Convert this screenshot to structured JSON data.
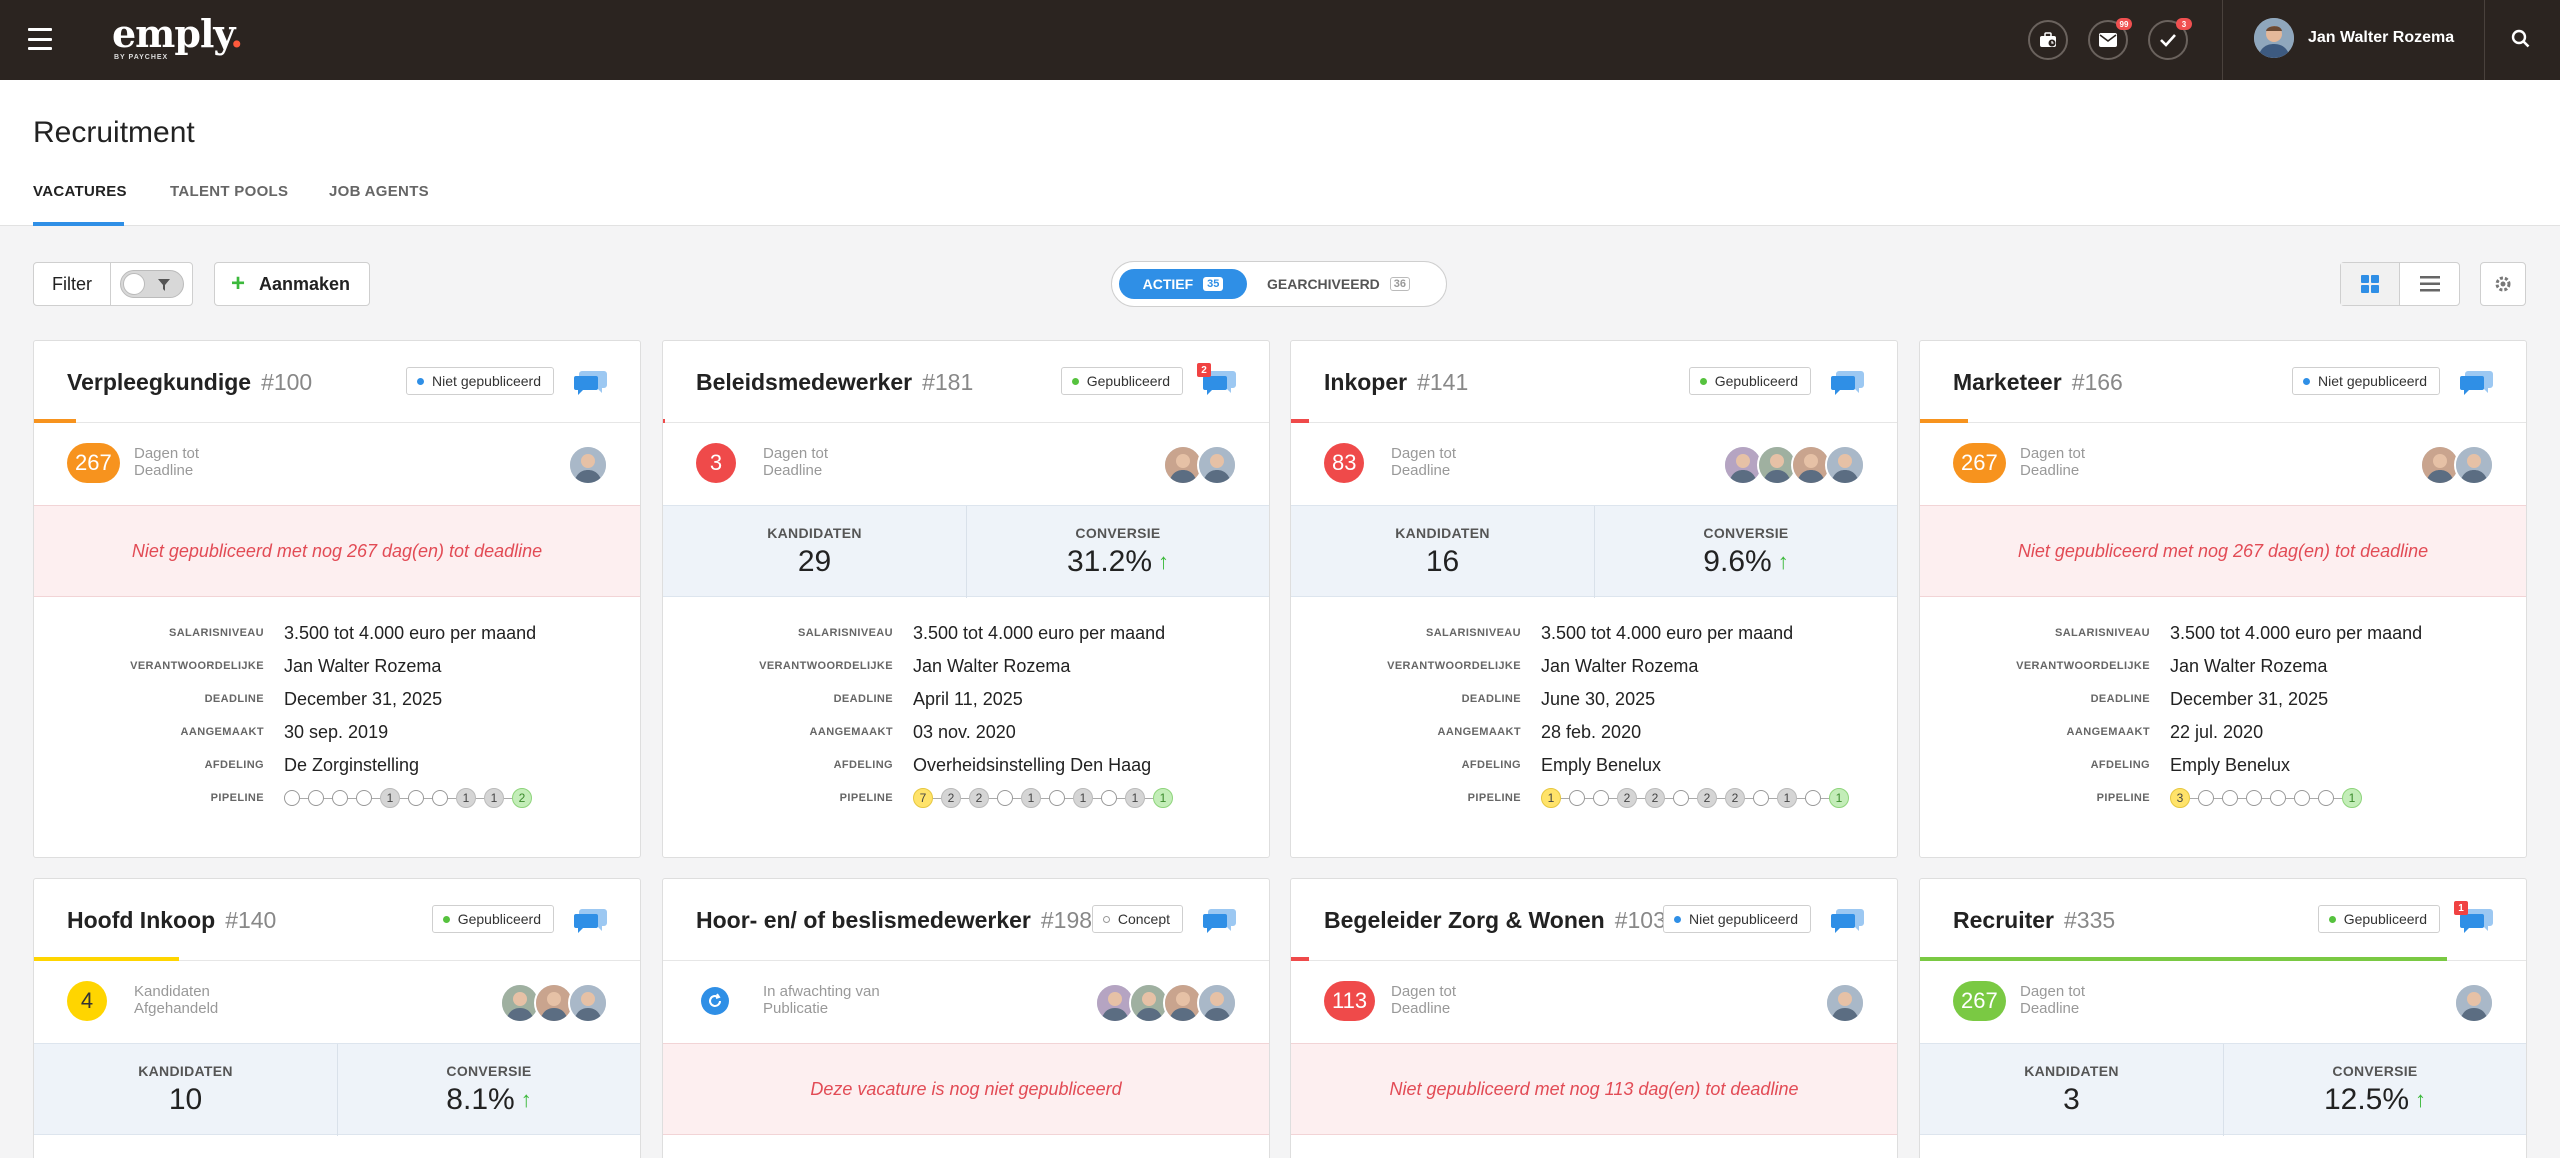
{
  "header": {
    "app_name": "emply",
    "app_dot": ".",
    "app_sub": "BY PAYCHEX",
    "icons": [
      {
        "name": "briefcase-icon",
        "badge": ""
      },
      {
        "name": "mail-icon",
        "badge": "99"
      },
      {
        "name": "checkmark-icon",
        "badge": "3"
      }
    ],
    "user_name": "Jan Walter Rozema"
  },
  "page": {
    "title": "Recruitment",
    "tabs": [
      "VACATURES",
      "TALENT POOLS",
      "JOB AGENTS"
    ],
    "active_tab": 0
  },
  "toolbar": {
    "filter_label": "Filter",
    "create_label": "Aanmaken",
    "active_label": "ACTIEF",
    "active_count": "35",
    "archived_label": "GEARCHIVEERD",
    "archived_count": "36"
  },
  "labels": {
    "salary": "SALARISNIVEAU",
    "owner": "VERANTWOORDELIJKE",
    "deadline": "DEADLINE",
    "created": "AANGEMAAKT",
    "dept": "AFDELING",
    "pipeline": "PIPELINE",
    "candidates": "KANDIDATEN",
    "conversion": "CONVERSIE"
  },
  "colors": {
    "accent": "#2f8fe6",
    "orange": "#f7931e",
    "red": "#ef4a4a",
    "yellow": "#ffd500",
    "green": "#7ac943"
  },
  "cards": [
    {
      "title": "Verpleegkundige",
      "number": "#100",
      "status": "Niet gepubliceerd",
      "status_dot": "#2f8fe6",
      "chat_badge": "",
      "accent_color": "#f7931e",
      "accent_width_frac": 0.07,
      "circle_value": "267",
      "circle_color": "#f7931e",
      "status_line1": "Dagen tot",
      "status_line2": "Deadline",
      "avatar_count": 1,
      "mode": "banner",
      "banner": "Niet gepubliceerd met nog 267 dag(en) tot deadline",
      "salary": "3.500 tot 4.000 euro per maand",
      "owner": "Jan Walter Rozema",
      "deadline": "December 31, 2025",
      "created": "30 sep. 2019",
      "dept": "De Zorginstelling",
      "pipeline": [
        "",
        "",
        "",
        "",
        "1",
        "",
        "",
        "1",
        "1",
        "2"
      ]
    },
    {
      "title": "Beleidsmedewerker",
      "number": "#181",
      "status": "Gepubliceerd",
      "status_dot": "#56c23e",
      "chat_badge": "2",
      "accent_color": "#ef4a4a",
      "accent_width_frac": 0.003,
      "circle_value": "3",
      "circle_color": "#ef4a4a",
      "status_line1": "Dagen tot",
      "status_line2": "Deadline",
      "avatar_count": 2,
      "mode": "stats",
      "candidates": "29",
      "conversion": "31.2%",
      "salary": "3.500 tot 4.000 euro per maand",
      "owner": "Jan Walter Rozema",
      "deadline": "April 11, 2025",
      "created": "03 nov. 2020",
      "dept": "Overheidsinstelling Den Haag",
      "pipeline": [
        "7",
        "2",
        "2",
        "",
        "1",
        "",
        "1",
        "",
        "1",
        "1"
      ]
    },
    {
      "title": "Inkoper",
      "number": "#141",
      "status": "Gepubliceerd",
      "status_dot": "#56c23e",
      "chat_badge": "",
      "accent_color": "#ef4a4a",
      "accent_width_frac": 0.03,
      "circle_value": "83",
      "circle_color": "#ef4a4a",
      "status_line1": "Dagen tot",
      "status_line2": "Deadline",
      "avatar_count": 4,
      "mode": "stats",
      "candidates": "16",
      "conversion": "9.6%",
      "salary": "3.500 tot 4.000 euro per maand",
      "owner": "Jan Walter Rozema",
      "deadline": "June 30, 2025",
      "created": "28 feb. 2020",
      "dept": "Emply Benelux",
      "pipeline": [
        "1",
        "",
        "",
        "2",
        "2",
        "",
        "2",
        "2",
        "",
        "1",
        "",
        "1"
      ]
    },
    {
      "title": "Marketeer",
      "number": "#166",
      "status": "Niet gepubliceerd",
      "status_dot": "#2f8fe6",
      "chat_badge": "",
      "accent_color": "#f7931e",
      "accent_width_frac": 0.08,
      "circle_value": "267",
      "circle_color": "#f7931e",
      "status_line1": "Dagen tot",
      "status_line2": "Deadline",
      "avatar_count": 2,
      "mode": "banner",
      "banner": "Niet gepubliceerd met nog 267 dag(en) tot deadline",
      "salary": "3.500 tot 4.000 euro per maand",
      "owner": "Jan Walter Rozema",
      "deadline": "December 31, 2025",
      "created": "22 jul. 2020",
      "dept": "Emply Benelux",
      "pipeline": [
        "3",
        "",
        "",
        "",
        "",
        "",
        "",
        "1"
      ]
    },
    {
      "title": "Hoofd Inkoop",
      "number": "#140",
      "status": "Gepubliceerd",
      "status_dot": "#56c23e",
      "chat_badge": "",
      "accent_color": "#ffd500",
      "accent_width_frac": 0.24,
      "circle_value": "4",
      "circle_color": "#ffd500",
      "status_line1": "Kandidaten",
      "status_line2": "Afgehandeld",
      "avatar_count": 3,
      "mode": "stats",
      "candidates": "10",
      "conversion": "8.1%"
    },
    {
      "title": "Hoor- en/ of beslismedewerker",
      "number": "#198",
      "status": "Concept",
      "status_dot": "#ffffff",
      "chat_badge": "",
      "accent_color": "#ffffff",
      "accent_width_frac": 0,
      "circle_value": "⟳",
      "circle_color": "#2f8fe6",
      "status_line1": "In afwachting van",
      "status_line2": "Publicatie",
      "avatar_count": 4,
      "mode": "banner",
      "banner": "Deze vacature is nog niet gepubliceerd"
    },
    {
      "title": "Begeleider Zorg & Wonen",
      "number": "#103",
      "status": "Niet gepubliceerd",
      "status_dot": "#2f8fe6",
      "chat_badge": "",
      "accent_color": "#ef4a4a",
      "accent_width_frac": 0.03,
      "circle_value": "113",
      "circle_color": "#ef4a4a",
      "status_line1": "Dagen tot",
      "status_line2": "Deadline",
      "avatar_count": 1,
      "mode": "banner",
      "banner": "Niet gepubliceerd met nog 113 dag(en) tot deadline"
    },
    {
      "title": "Recruiter",
      "number": "#335",
      "status": "Gepubliceerd",
      "status_dot": "#56c23e",
      "chat_badge": "1",
      "accent_color": "#7ac943",
      "accent_width_frac": 0.87,
      "circle_value": "267",
      "circle_color": "#7ac943",
      "status_line1": "Dagen tot",
      "status_line2": "Deadline",
      "avatar_count": 1,
      "mode": "stats",
      "candidates": "3",
      "conversion": "12.5%"
    }
  ]
}
